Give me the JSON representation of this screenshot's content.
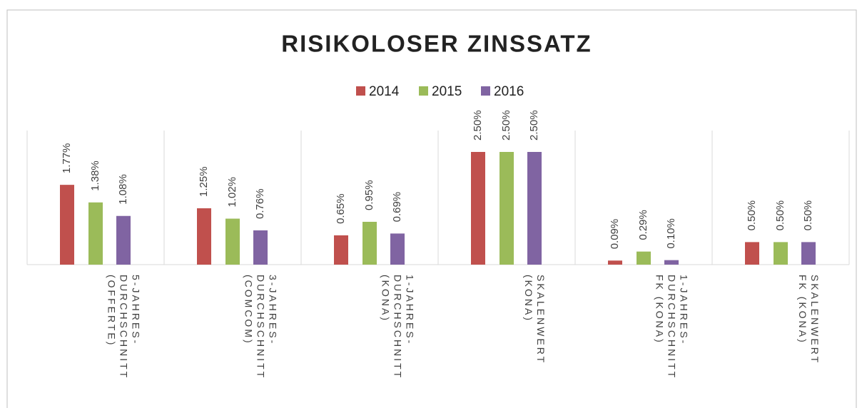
{
  "chart_data": {
    "type": "bar",
    "title": "RISIKOLOSER ZINSSATZ",
    "categories": [
      [
        "5-JAHRES-",
        "DURCHSCHNITT",
        "(OFFERTE)"
      ],
      [
        "3-JAHRES-",
        "DURCHSCHNITT",
        "(COMCOM)"
      ],
      [
        "1-JAHRES-",
        "DURCHSCHNITT",
        "(KONA)"
      ],
      [
        "SKALENWERT",
        "(KONA)"
      ],
      [
        "1-JAHRES-",
        "DURCHSCHNITT",
        "FK (KONA)"
      ],
      [
        "SKALENWERT",
        "FK (KONA)"
      ]
    ],
    "series": [
      {
        "name": "2014",
        "color": "#c0504d",
        "values": [
          1.77,
          1.25,
          0.65,
          2.5,
          0.09,
          0.5
        ],
        "value_labels": [
          "1.77%",
          "1.25%",
          "0.65%",
          "2.50%",
          "0.09%",
          "0.50%"
        ]
      },
      {
        "name": "2015",
        "color": "#9bbb59",
        "values": [
          1.38,
          1.02,
          0.95,
          2.5,
          0.29,
          0.5
        ],
        "value_labels": [
          "1.38%",
          "1.02%",
          "0.95%",
          "2.50%",
          "0.29%",
          "0.50%"
        ]
      },
      {
        "name": "2016",
        "color": "#8064a2",
        "values": [
          1.08,
          0.76,
          0.69,
          2.5,
          0.1,
          0.5
        ],
        "value_labels": [
          "1.08%",
          "0.76%",
          "0.69%",
          "2.50%",
          "0.10%",
          "0.50%"
        ]
      }
    ],
    "legend": "top"
  }
}
